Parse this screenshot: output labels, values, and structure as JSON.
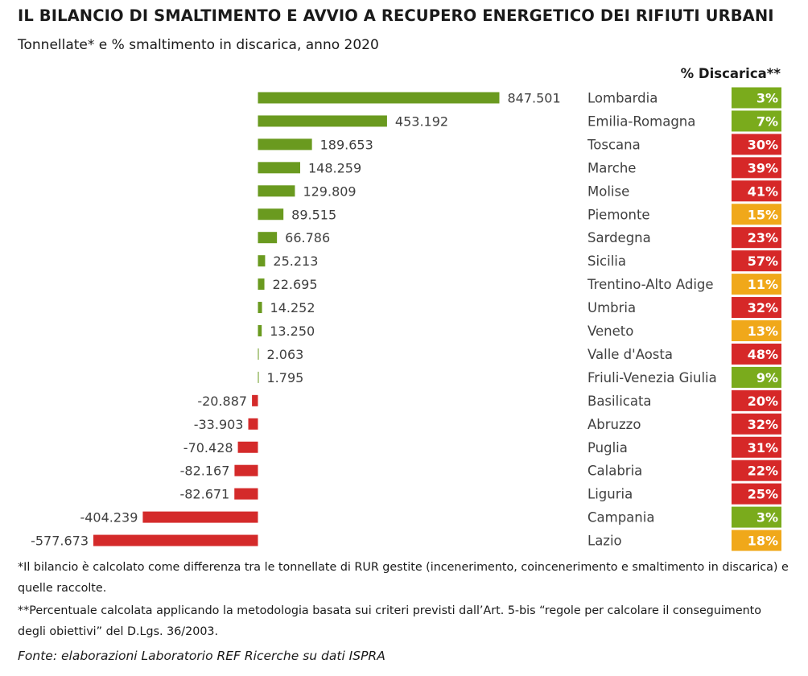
{
  "title": "IL BILANCIO DI SMALTIMENTO E AVVIO A RECUPERO ENERGETICO DEI RIFIUTI URBANI",
  "subtitle": "Tonnellate* e % smaltimento in discarica, anno 2020",
  "chart_data": {
    "type": "bar",
    "orientation": "horizontal",
    "categories": [
      "Lombardia",
      "Emilia-Romagna",
      "Toscana",
      "Marche",
      "Molise",
      "Piemonte",
      "Sardegna",
      "Sicilia",
      "Trentino-Alto Adige",
      "Umbria",
      "Veneto",
      "Valle d'Aosta",
      "Friuli-Venezia Giulia",
      "Basilicata",
      "Abruzzo",
      "Puglia",
      "Calabria",
      "Liguria",
      "Campania",
      "Lazio"
    ],
    "values": [
      847501,
      453192,
      189653,
      148259,
      129809,
      89515,
      66786,
      25213,
      22695,
      14252,
      13250,
      2063,
      1795,
      -20887,
      -33903,
      -70428,
      -82167,
      -82671,
      -404239,
      -577673
    ],
    "value_labels": [
      "847.501",
      "453.192",
      "189.653",
      "148.259",
      "129.809",
      "89.515",
      "66.786",
      "25.213",
      "22.695",
      "14.252",
      "13.250",
      "2.063",
      "1.795",
      "-20.887",
      "-33.903",
      "-70.428",
      "-82.167",
      "-82.671",
      "-404.239",
      "-577.673"
    ],
    "colors": {
      "positive": "#6a9a1f",
      "negative": "#d42a2a"
    },
    "discarica": {
      "header": "% Discarica**",
      "labels": [
        "3%",
        "7%",
        "30%",
        "39%",
        "41%",
        "15%",
        "23%",
        "57%",
        "11%",
        "32%",
        "13%",
        "48%",
        "9%",
        "20%",
        "32%",
        "31%",
        "22%",
        "25%",
        "3%",
        "18%"
      ],
      "levels": [
        "green",
        "green",
        "red",
        "red",
        "red",
        "orange",
        "red",
        "red",
        "orange",
        "red",
        "orange",
        "red",
        "green",
        "red",
        "red",
        "red",
        "red",
        "red",
        "green",
        "orange"
      ],
      "level_colors": {
        "green": "#7aab1c",
        "red": "#d62828",
        "orange": "#f0a81a"
      }
    }
  },
  "footnotes": {
    "note1": "*Il bilancio è calcolato come differenza tra le tonnellate di RUR gestite (incenerimento, coincenerimento e smaltimento in discarica) e quelle raccolte.",
    "note2": "**Percentuale calcolata applicando la metodologia basata sui criteri previsti dall’Art. 5-bis “regole per calcolare il conseguimento degli obiettivi” del D.Lgs. 36/2003.",
    "source": "Fonte: elaborazioni Laboratorio REF Ricerche su dati ISPRA"
  }
}
